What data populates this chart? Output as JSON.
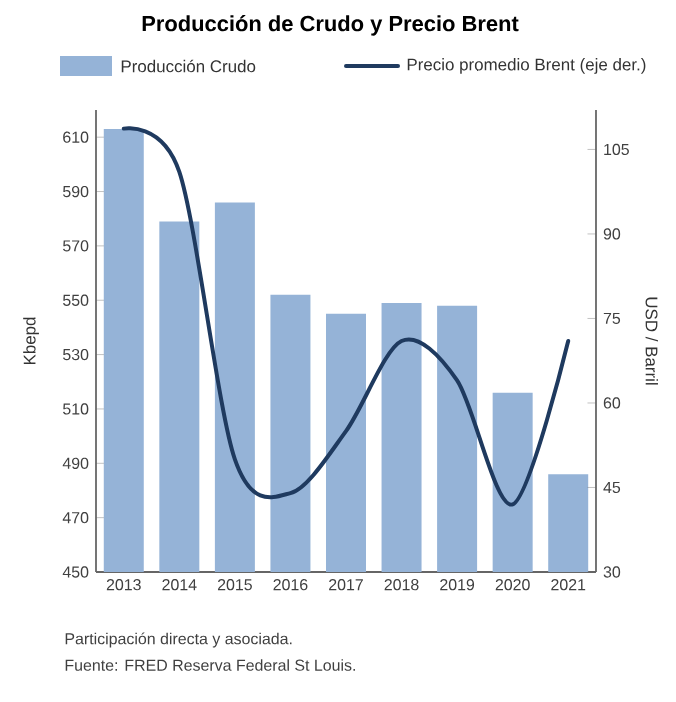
{
  "chart_data": {
    "type": "bar",
    "title": "Producción de Crudo y Precio Brent",
    "categories": [
      "2013",
      "2014",
      "2015",
      "2016",
      "2017",
      "2018",
      "2019",
      "2020",
      "2021"
    ],
    "series": [
      {
        "name": "Producción Crudo",
        "color": "#95b3d7",
        "values": [
          613,
          579,
          586,
          552,
          545,
          549,
          548,
          516,
          486
        ]
      },
      {
        "name": "Precio promedio Brent (eje der.)",
        "type": "line",
        "axis": "y2",
        "color": "#1f3a5f",
        "values": [
          108.7,
          101,
          50,
          44,
          55,
          71,
          64,
          42,
          71
        ]
      }
    ],
    "ylabel": "Kbepd",
    "y2label": "USD / Barril",
    "ylim": [
      450,
      620
    ],
    "yticks": [
      450,
      470,
      490,
      510,
      530,
      550,
      570,
      590,
      610
    ],
    "y2lim": [
      30,
      112
    ],
    "y2ticks": [
      30,
      45,
      60,
      75,
      90,
      105
    ],
    "legend": "top",
    "marker": "none",
    "line_style": "solid",
    "annotations": [
      "Participación directa y asociada.",
      "Fuente: FRED Reserva Federal St Louis."
    ]
  }
}
